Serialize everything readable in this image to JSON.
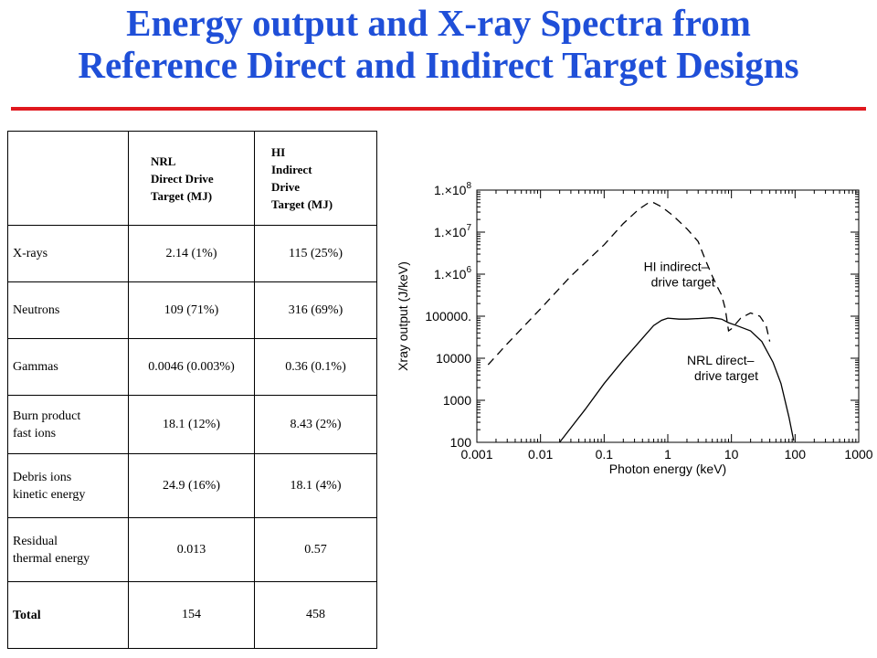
{
  "title_line1": "Energy output and X-ray Spectra from",
  "title_line2": "Reference Direct and Indirect Target Designs",
  "colors": {
    "title": "#1f4fd8",
    "rule": "#e0181e",
    "line": "#000000"
  },
  "table": {
    "header_nrl": [
      "NRL",
      "Direct Drive",
      "Target (MJ)"
    ],
    "header_hi": [
      "HI",
      "Indirect",
      "Drive",
      "Target (MJ)"
    ],
    "rows": [
      {
        "label": [
          "X-rays"
        ],
        "nrl": "2.14 (1%)",
        "hi": "115 (25%)"
      },
      {
        "label": [
          "Neutrons"
        ],
        "nrl": "109 (71%)",
        "hi": "316 (69%)"
      },
      {
        "label": [
          "Gammas"
        ],
        "nrl": "0.0046 (0.003%)",
        "hi": "0.36 (0.1%)"
      },
      {
        "label": [
          "Burn product",
          "fast ions"
        ],
        "nrl": "18.1 (12%)",
        "hi": "8.43 (2%)"
      },
      {
        "label": [
          "Debris ions",
          "kinetic energy"
        ],
        "nrl": "24.9 (16%)",
        "hi": "18.1 (4%)"
      },
      {
        "label": [
          "Residual",
          "thermal energy"
        ],
        "nrl": "0.013",
        "hi": "0.57"
      },
      {
        "label": [
          "Total"
        ],
        "nrl": "154",
        "hi": "458"
      }
    ]
  },
  "chart_data": {
    "type": "line",
    "xscale": "log",
    "yscale": "log",
    "xlim": [
      0.001,
      1000
    ],
    "ylim": [
      100,
      100000000
    ],
    "xlabel": "Photon energy (keV)",
    "ylabel": "Xray output (J/keV)",
    "x_ticks": [
      "0.001",
      "0.01",
      "0.1",
      "1",
      "10",
      "100",
      "1000"
    ],
    "y_ticks": [
      "100",
      "1000",
      "10000",
      "100000.",
      "1.×10^6",
      "1.×10^7",
      "1.×10^8"
    ],
    "grid": false,
    "series": [
      {
        "name": "HI indirect-drive target",
        "style": "dashed",
        "label_lines": [
          "HI indirect–",
          "drive target"
        ],
        "x": [
          0.0015,
          0.003,
          0.01,
          0.03,
          0.1,
          0.2,
          0.35,
          0.5,
          0.6,
          0.8,
          1.2,
          2,
          3,
          4,
          5,
          6,
          7,
          8,
          9,
          10,
          14,
          20,
          28,
          35,
          40
        ],
        "y": [
          7000,
          22000,
          150000,
          900000,
          5000000,
          16000000,
          35000000,
          50000000,
          50000000,
          40000000,
          25000000,
          12000000,
          6000000,
          2000000,
          900000,
          500000,
          320000,
          150000,
          45000,
          50000,
          90000,
          120000,
          100000,
          60000,
          25000
        ]
      },
      {
        "name": "NRL direct-drive target",
        "style": "solid",
        "label_lines": [
          "NRL direct–",
          "drive target"
        ],
        "x": [
          0.02,
          0.05,
          0.1,
          0.2,
          0.4,
          0.6,
          0.8,
          1,
          1.5,
          2,
          3,
          5,
          7,
          9,
          12,
          20,
          30,
          45,
          60,
          80,
          95
        ],
        "y": [
          100,
          600,
          2500,
          9000,
          30000,
          60000,
          80000,
          90000,
          85000,
          85000,
          88000,
          92000,
          85000,
          70000,
          60000,
          45000,
          25000,
          8000,
          2500,
          400,
          110
        ]
      }
    ]
  }
}
